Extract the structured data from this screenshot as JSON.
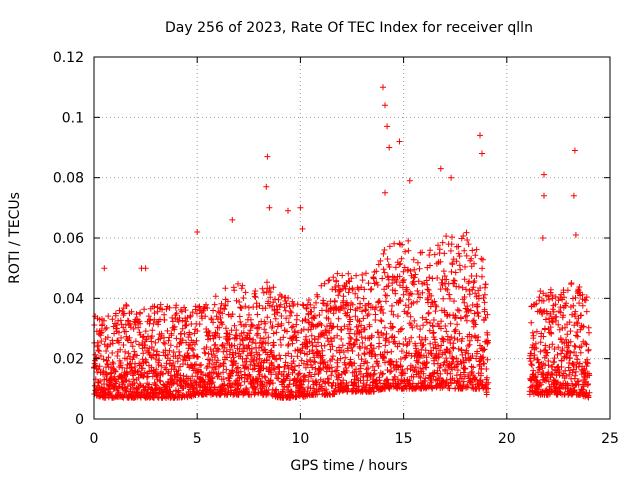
{
  "chart_data": {
    "type": "scatter",
    "title": "Day 256 of 2023, Rate Of TEC Index for receiver qlln",
    "xlabel": "GPS time / hours",
    "ylabel": "ROTI / TECUs",
    "xlim": [
      0,
      25
    ],
    "ylim": [
      0,
      0.12
    ],
    "x_ticks": [
      "0",
      "5",
      "10",
      "15",
      "20",
      "25"
    ],
    "y_ticks": [
      "0",
      "0.02",
      "0.04",
      "0.06",
      "0.08",
      "0.1",
      "0.12"
    ],
    "grid": true,
    "marker": "+",
    "series_color": "#ff0000",
    "data_gap_hours": [
      19.1,
      21.1
    ],
    "envelope": {
      "x": [
        0,
        0.5,
        1,
        1.5,
        2,
        2.5,
        3,
        3.5,
        4,
        4.5,
        5,
        5.5,
        6,
        6.5,
        7,
        7.5,
        8,
        8.5,
        9,
        9.5,
        10,
        10.5,
        11,
        11.5,
        12,
        12.5,
        13,
        13.5,
        14,
        14.5,
        15,
        15.5,
        16,
        16.5,
        17,
        17.5,
        18,
        18.5,
        19,
        21.1,
        21.5,
        22,
        22.5,
        23,
        23.5,
        24
      ],
      "y_max": [
        0.035,
        0.033,
        0.036,
        0.04,
        0.035,
        0.04,
        0.038,
        0.038,
        0.038,
        0.037,
        0.038,
        0.038,
        0.042,
        0.044,
        0.046,
        0.042,
        0.044,
        0.046,
        0.042,
        0.04,
        0.038,
        0.04,
        0.045,
        0.047,
        0.05,
        0.048,
        0.048,
        0.05,
        0.056,
        0.058,
        0.06,
        0.058,
        0.056,
        0.058,
        0.062,
        0.06,
        0.062,
        0.06,
        0.05,
        0.038,
        0.042,
        0.044,
        0.04,
        0.046,
        0.044,
        0.04
      ],
      "y_min": [
        0.008,
        0.007,
        0.007,
        0.007,
        0.007,
        0.007,
        0.007,
        0.007,
        0.007,
        0.007,
        0.008,
        0.008,
        0.008,
        0.008,
        0.008,
        0.008,
        0.008,
        0.008,
        0.007,
        0.007,
        0.007,
        0.008,
        0.008,
        0.008,
        0.009,
        0.009,
        0.009,
        0.009,
        0.01,
        0.01,
        0.01,
        0.01,
        0.01,
        0.01,
        0.01,
        0.01,
        0.01,
        0.01,
        0.01,
        0.008,
        0.008,
        0.008,
        0.008,
        0.008,
        0.008,
        0.007
      ]
    },
    "outliers": [
      {
        "x": 0.5,
        "y": 0.05
      },
      {
        "x": 2.3,
        "y": 0.05
      },
      {
        "x": 2.5,
        "y": 0.05
      },
      {
        "x": 5.0,
        "y": 0.062
      },
      {
        "x": 6.7,
        "y": 0.066
      },
      {
        "x": 8.4,
        "y": 0.087
      },
      {
        "x": 8.35,
        "y": 0.077
      },
      {
        "x": 8.5,
        "y": 0.07
      },
      {
        "x": 9.4,
        "y": 0.069
      },
      {
        "x": 10.0,
        "y": 0.07
      },
      {
        "x": 10.1,
        "y": 0.063
      },
      {
        "x": 14.0,
        "y": 0.11
      },
      {
        "x": 14.1,
        "y": 0.104
      },
      {
        "x": 14.2,
        "y": 0.097
      },
      {
        "x": 14.3,
        "y": 0.09
      },
      {
        "x": 14.1,
        "y": 0.075
      },
      {
        "x": 14.8,
        "y": 0.092
      },
      {
        "x": 15.3,
        "y": 0.079
      },
      {
        "x": 16.8,
        "y": 0.083
      },
      {
        "x": 17.3,
        "y": 0.08
      },
      {
        "x": 18.7,
        "y": 0.094
      },
      {
        "x": 18.8,
        "y": 0.088
      },
      {
        "x": 21.8,
        "y": 0.081
      },
      {
        "x": 21.8,
        "y": 0.074
      },
      {
        "x": 21.75,
        "y": 0.06
      },
      {
        "x": 23.3,
        "y": 0.089
      },
      {
        "x": 23.25,
        "y": 0.074
      },
      {
        "x": 23.35,
        "y": 0.061
      }
    ]
  }
}
